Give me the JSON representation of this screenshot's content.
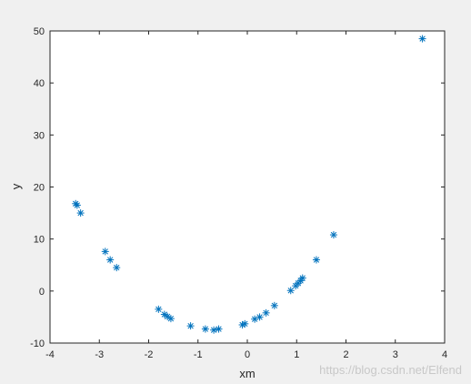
{
  "chart_data": {
    "type": "scatter",
    "marker": "asterisk",
    "xlabel": "xm",
    "ylabel": "y",
    "xlim": [
      -4,
      4
    ],
    "ylim": [
      -10,
      50
    ],
    "xticks": [
      "-4",
      "-3",
      "-2",
      "-1",
      "0",
      "1",
      "2",
      "3",
      "4"
    ],
    "yticks": [
      "-10",
      "0",
      "10",
      "20",
      "30",
      "40",
      "50"
    ],
    "grid": false,
    "box": true,
    "colors": {
      "marker": "#0072BD",
      "axes": "#262626",
      "plot_bg": "#ffffff",
      "figure_bg": "#f0f0f0"
    },
    "points": [
      {
        "x": -3.48,
        "y": 16.8
      },
      {
        "x": -3.45,
        "y": 16.5
      },
      {
        "x": -3.38,
        "y": 15.0
      },
      {
        "x": -2.88,
        "y": 7.6
      },
      {
        "x": -2.78,
        "y": 6.0
      },
      {
        "x": -2.65,
        "y": 4.5
      },
      {
        "x": -1.8,
        "y": -3.5
      },
      {
        "x": -1.68,
        "y": -4.5
      },
      {
        "x": -1.62,
        "y": -4.9
      },
      {
        "x": -1.55,
        "y": -5.3
      },
      {
        "x": -1.15,
        "y": -6.7
      },
      {
        "x": -0.85,
        "y": -7.3
      },
      {
        "x": -0.68,
        "y": -7.5
      },
      {
        "x": -0.58,
        "y": -7.3
      },
      {
        "x": -0.1,
        "y": -6.5
      },
      {
        "x": -0.05,
        "y": -6.3
      },
      {
        "x": 0.15,
        "y": -5.4
      },
      {
        "x": 0.25,
        "y": -5.0
      },
      {
        "x": 0.38,
        "y": -4.2
      },
      {
        "x": 0.55,
        "y": -2.8
      },
      {
        "x": 0.88,
        "y": 0.1
      },
      {
        "x": 0.98,
        "y": 1.0
      },
      {
        "x": 1.03,
        "y": 1.5
      },
      {
        "x": 1.08,
        "y": 2.0
      },
      {
        "x": 1.12,
        "y": 2.5
      },
      {
        "x": 1.4,
        "y": 6.0
      },
      {
        "x": 1.75,
        "y": 10.8
      },
      {
        "x": 3.55,
        "y": 48.5
      }
    ]
  },
  "watermark": "https://blog.csdn.net/Elfend"
}
